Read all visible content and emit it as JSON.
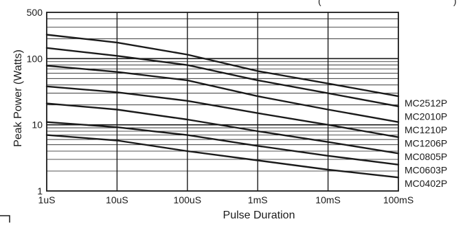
{
  "header_fragment": "(",
  "header_fragment_right": ")",
  "chart_data": {
    "type": "line",
    "title": "",
    "xlabel": "Pulse Duration",
    "ylabel": "Peak Power (Watts)",
    "x_scale": "log",
    "y_scale": "log",
    "xlim": [
      "1uS",
      "100mS"
    ],
    "ylim": [
      1,
      500
    ],
    "grid": true,
    "x_tick_labels": [
      "1uS",
      "10uS",
      "100uS",
      "1mS",
      "10mS",
      "100mS"
    ],
    "x_tick_values_seconds": [
      1e-06,
      1e-05,
      0.0001,
      0.001,
      0.01,
      0.1
    ],
    "y_tick_labels": [
      "1",
      "10",
      "100",
      "500"
    ],
    "y_tick_values": [
      1,
      10,
      100,
      500
    ],
    "legend_placement": "right (labels at line ends)",
    "series": [
      {
        "name": "MC2512P",
        "x_seconds": [
          1e-06,
          1e-05,
          0.0001,
          0.001,
          0.01,
          0.1
        ],
        "values": [
          230,
          175,
          115,
          65,
          42,
          27
        ]
      },
      {
        "name": "MC2010P",
        "x_seconds": [
          1e-06,
          1e-05,
          0.0001,
          0.001,
          0.01,
          0.1
        ],
        "values": [
          145,
          110,
          80,
          47,
          30,
          19
        ]
      },
      {
        "name": "MC1210P",
        "x_seconds": [
          1e-06,
          1e-05,
          0.0001,
          0.001,
          0.01,
          0.1
        ],
        "values": [
          78,
          63,
          47,
          27,
          17,
          11
        ]
      },
      {
        "name": "MC1206P",
        "x_seconds": [
          1e-06,
          1e-05,
          0.0001,
          0.001,
          0.01,
          0.1
        ],
        "values": [
          38,
          31,
          23,
          15,
          10,
          6.5
        ]
      },
      {
        "name": "MC0805P",
        "x_seconds": [
          1e-06,
          1e-05,
          0.0001,
          0.001,
          0.01,
          0.1
        ],
        "values": [
          21,
          17,
          12,
          8,
          5.5,
          3.7
        ]
      },
      {
        "name": "MC0603P",
        "x_seconds": [
          1e-06,
          1e-05,
          0.0001,
          0.001,
          0.01,
          0.1
        ],
        "values": [
          11,
          9.2,
          7,
          4.8,
          3.4,
          2.5
        ]
      },
      {
        "name": "MC0402P",
        "x_seconds": [
          1e-06,
          1e-05,
          0.0001,
          0.001,
          0.01,
          0.1
        ],
        "values": [
          7,
          5.8,
          4,
          2.9,
          2.1,
          1.6
        ]
      }
    ],
    "colors": {
      "line": "#1a1a1a",
      "grid": "#1a1a1a",
      "background": "#ffffff"
    }
  }
}
